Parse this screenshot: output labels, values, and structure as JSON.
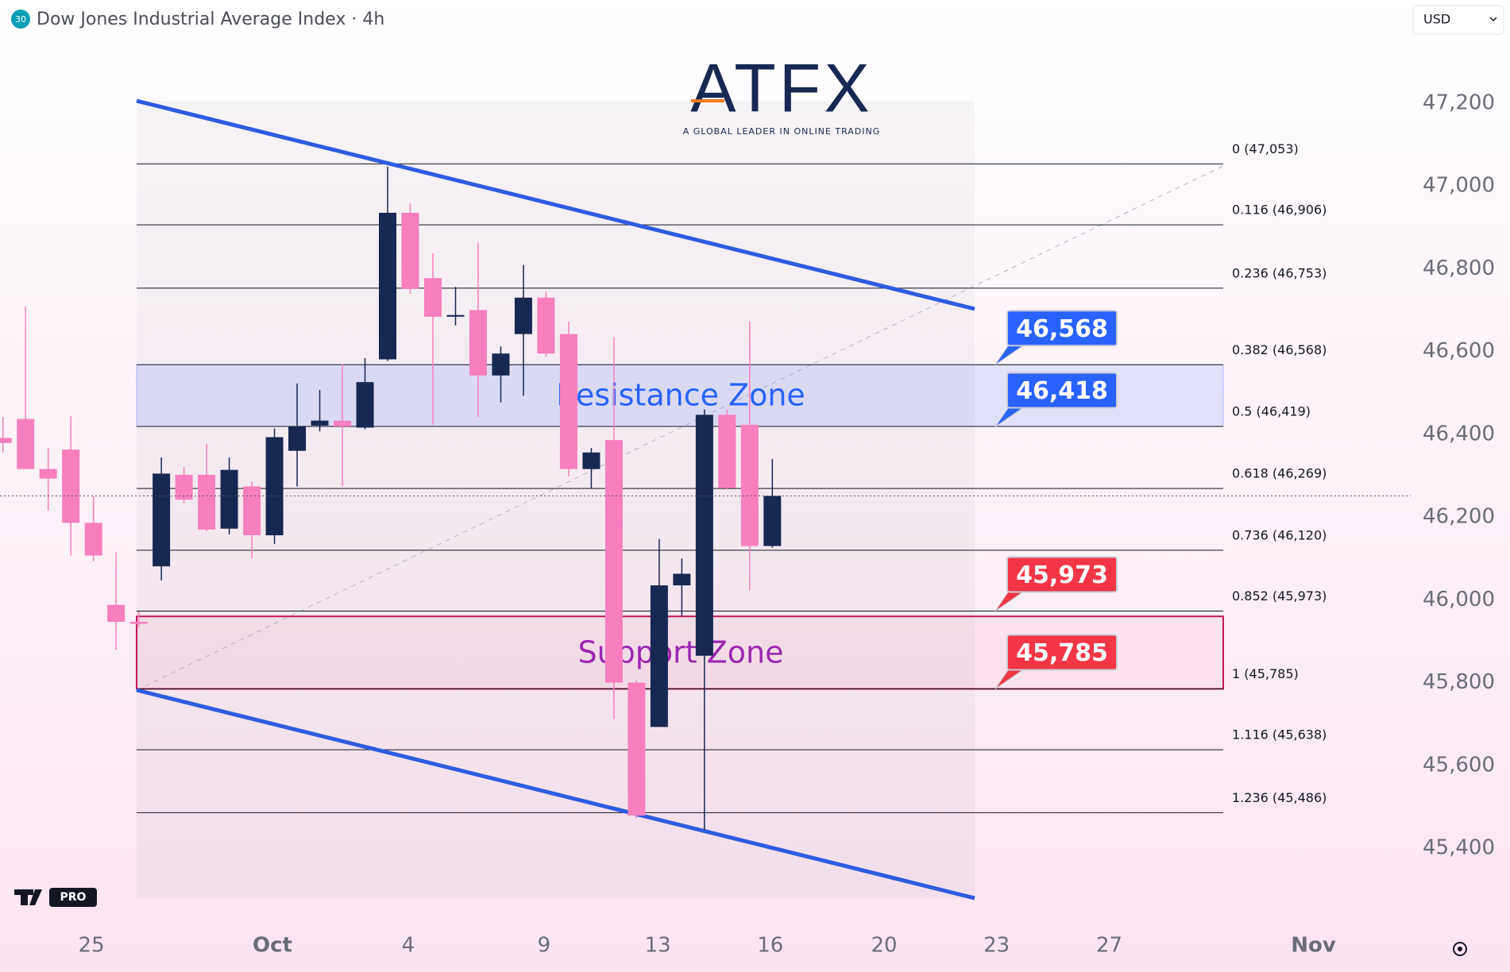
{
  "header": {
    "badge": "30",
    "title": "Dow Jones Industrial Average Index · 4h",
    "currency": "USD"
  },
  "watermark": {
    "brand": "ATFX",
    "tagline": "A GLOBAL LEADER IN ONLINE TRADING"
  },
  "tv_logo": "PRO",
  "chart_data": {
    "type": "candlestick",
    "up_color": "#172852",
    "down_color": "#f77fbe",
    "x": [
      0,
      1,
      2,
      3,
      4,
      5,
      6,
      7,
      8,
      9,
      10,
      11,
      12,
      13,
      14,
      15,
      16,
      17,
      18,
      19,
      20,
      21,
      22,
      23,
      24,
      25,
      26,
      27,
      28,
      29,
      30,
      31,
      32,
      33,
      34
    ],
    "open": [
      46391,
      46437,
      46316,
      46363,
      46186,
      45988,
      45947,
      46081,
      46302,
      46302,
      46172,
      46274,
      46156,
      46360,
      46421,
      46433,
      46416,
      46581,
      46935,
      46777,
      46684,
      46700,
      46542,
      46642,
      46730,
      46642,
      46316,
      46386,
      45800,
      45693,
      46035,
      45865,
      46447,
      46423,
      46130
    ],
    "high": [
      46442,
      46709,
      46367,
      46444,
      46251,
      46116,
      45972,
      46344,
      46321,
      46377,
      46344,
      46286,
      46414,
      46523,
      46507,
      46570,
      46584,
      47047,
      46958,
      46837,
      46756,
      46863,
      46612,
      46809,
      46744,
      46672,
      46367,
      46635,
      45805,
      46147,
      46100,
      46460,
      46460,
      46672,
      46340
    ],
    "low": [
      46356,
      46316,
      46216,
      46107,
      46093,
      45879,
      45933,
      46047,
      46233,
      46165,
      46158,
      46100,
      46135,
      46274,
      46407,
      46274,
      46412,
      46577,
      46740,
      46423,
      46663,
      46442,
      46477,
      46493,
      46588,
      46298,
      46270,
      45712,
      45472,
      45693,
      45960,
      45444,
      46267,
      46023,
      46126
    ],
    "close": [
      46379,
      46316,
      46293,
      46186,
      46107,
      45947,
      45942,
      46305,
      46242,
      46170,
      46314,
      46156,
      46393,
      46419,
      46433,
      46419,
      46526,
      46935,
      46751,
      46684,
      46688,
      46542,
      46595,
      46730,
      46595,
      46316,
      46356,
      45800,
      45479,
      46035,
      46063,
      46447,
      46270,
      46130,
      46251
    ],
    "xlim": [
      -0.13,
      62.21
    ],
    "xticks": [
      {
        "value": 3.91,
        "label": "25"
      },
      {
        "value": 11.91,
        "label": "Oct"
      },
      {
        "value": 17.91,
        "label": "4"
      },
      {
        "value": 23.91,
        "label": "9"
      },
      {
        "value": 28.94,
        "label": "13"
      },
      {
        "value": 33.91,
        "label": "16"
      },
      {
        "value": 38.94,
        "label": "20"
      },
      {
        "value": 43.91,
        "label": "23"
      },
      {
        "value": 48.89,
        "label": "27"
      },
      {
        "value": 57.91,
        "label": "Nov"
      }
    ],
    "ylim": [
      45243,
      47449
    ],
    "yticks": [
      {
        "value": 45400,
        "label": "45,400"
      },
      {
        "value": 45600,
        "label": "45,600"
      },
      {
        "value": 45800,
        "label": "45,800"
      },
      {
        "value": 46000,
        "label": "46,000"
      },
      {
        "value": 46200,
        "label": "46,200"
      },
      {
        "value": 46400,
        "label": "46,400"
      },
      {
        "value": 46600,
        "label": "46,600"
      },
      {
        "value": 46800,
        "label": "46,800"
      },
      {
        "value": 47000,
        "label": "47,000"
      },
      {
        "value": 47200,
        "label": "47,200"
      }
    ],
    "fib_levels": [
      {
        "label": "0 (47,053)",
        "value": 47053
      },
      {
        "label": "0.116 (46,906)",
        "value": 46906
      },
      {
        "label": "0.236 (46,753)",
        "value": 46753
      },
      {
        "label": "0.382 (46,568)",
        "value": 46568
      },
      {
        "label": "0.5 (46,419)",
        "value": 46419
      },
      {
        "label": "0.618 (46,269)",
        "value": 46269
      },
      {
        "label": "0.736 (46,120)",
        "value": 46120
      },
      {
        "label": "0.852 (45,973)",
        "value": 45973
      },
      {
        "label": "1 (45,785)",
        "value": 45785
      },
      {
        "label": "1.116 (45,638)",
        "value": 45638
      },
      {
        "label": "1.236 (45,486)",
        "value": 45486
      }
    ],
    "zones": [
      {
        "label": "Resistance Zone",
        "top": 46568,
        "bottom": 46419,
        "color": "#2962ff"
      },
      {
        "label": "Support Zone",
        "top": 45960,
        "bottom": 45785,
        "color": "#9c27b0"
      }
    ],
    "price_tags": [
      {
        "value": 46568,
        "label": "46,568",
        "color": "#2962ff"
      },
      {
        "value": 46418,
        "label": "46,418",
        "color": "#2962ff"
      },
      {
        "value": 45973,
        "label": "45,973",
        "color": "#f23645"
      },
      {
        "value": 45785,
        "label": "45,785",
        "color": "#f23645"
      }
    ]
  }
}
